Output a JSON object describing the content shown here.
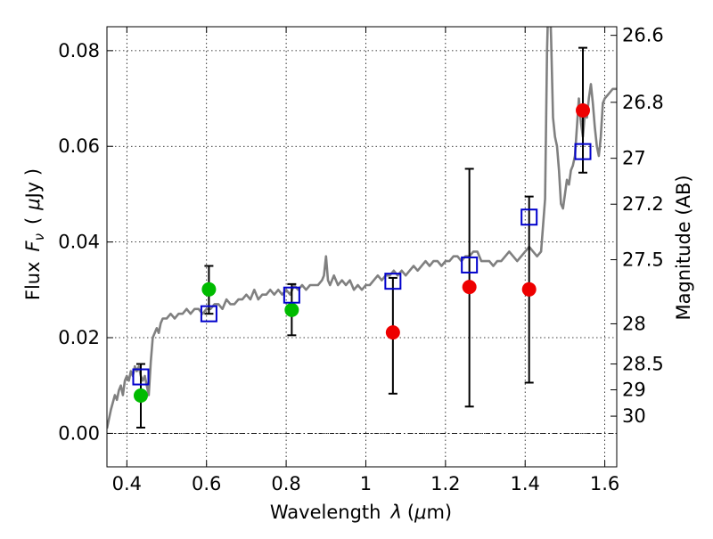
{
  "chart_data": {
    "type": "scatter",
    "xlabel": "Wavelength",
    "xlabel_symbol": "λ",
    "xlabel_unit_open": "(",
    "xlabel_unit_mu": "μ",
    "xlabel_unit_rest": "m)",
    "ylabel_prefix": "Flux",
    "ylabel_symbol": "F",
    "ylabel_subscript": "ν",
    "ylabel_unit_open": "(",
    "ylabel_unit_mu": "μ",
    "ylabel_unit_rest": "Jy )",
    "y2label": "Magnitude (AB)",
    "xlim": [
      0.35,
      1.63
    ],
    "ylim": [
      -0.007,
      0.085
    ],
    "grid": true,
    "x_ticks": [
      0.4,
      0.6,
      0.8,
      1.0,
      1.2,
      1.4,
      1.6
    ],
    "x_tick_labels": [
      "0.4",
      "0.6",
      "0.8",
      "1",
      "1.2",
      "1.4",
      "1.6"
    ],
    "y_ticks": [
      0.0,
      0.02,
      0.04,
      0.06,
      0.08
    ],
    "y_tick_labels": [
      "0.00",
      "0.02",
      "0.04",
      "0.06",
      "0.08"
    ],
    "y2_ticks": [
      {
        "label": "26.6",
        "flux": 0.0832
      },
      {
        "label": "26.8",
        "flux": 0.0692
      },
      {
        "label": "27",
        "flux": 0.0575
      },
      {
        "label": "27.2",
        "flux": 0.0479
      },
      {
        "label": "27.5",
        "flux": 0.0363
      },
      {
        "label": "28",
        "flux": 0.0229
      },
      {
        "label": "28.5",
        "flux": 0.0145
      },
      {
        "label": "29",
        "flux": 0.0091
      },
      {
        "label": "30",
        "flux": 0.0036
      }
    ],
    "colors": {
      "sed": "#808080",
      "green_points": "#00bb00",
      "red_points": "#ee0000",
      "model_squares": "#0000cc",
      "errorbars": "#000000"
    },
    "series": [
      {
        "type": "line",
        "points": [
          [
            0.35,
            0.001
          ],
          [
            0.36,
            0.005
          ],
          [
            0.37,
            0.008
          ],
          [
            0.375,
            0.007
          ],
          [
            0.38,
            0.009
          ],
          [
            0.385,
            0.01
          ],
          [
            0.39,
            0.008
          ],
          [
            0.395,
            0.011
          ],
          [
            0.4,
            0.012
          ],
          [
            0.405,
            0.011
          ],
          [
            0.41,
            0.013
          ],
          [
            0.415,
            0.012
          ],
          [
            0.42,
            0.014
          ],
          [
            0.425,
            0.013
          ],
          [
            0.43,
            0.014
          ],
          [
            0.435,
            0.012
          ],
          [
            0.44,
            0.011
          ],
          [
            0.445,
            0.012
          ],
          [
            0.45,
            0.01
          ],
          [
            0.455,
            0.008
          ],
          [
            0.46,
            0.015
          ],
          [
            0.465,
            0.02
          ],
          [
            0.47,
            0.021
          ],
          [
            0.475,
            0.022
          ],
          [
            0.48,
            0.021
          ],
          [
            0.485,
            0.023
          ],
          [
            0.49,
            0.024
          ],
          [
            0.5,
            0.024
          ],
          [
            0.51,
            0.025
          ],
          [
            0.52,
            0.024
          ],
          [
            0.53,
            0.025
          ],
          [
            0.54,
            0.025
          ],
          [
            0.55,
            0.026
          ],
          [
            0.56,
            0.025
          ],
          [
            0.57,
            0.026
          ],
          [
            0.58,
            0.026
          ],
          [
            0.59,
            0.025
          ],
          [
            0.6,
            0.026
          ],
          [
            0.61,
            0.026
          ],
          [
            0.62,
            0.027
          ],
          [
            0.63,
            0.027
          ],
          [
            0.64,
            0.026
          ],
          [
            0.65,
            0.028
          ],
          [
            0.66,
            0.027
          ],
          [
            0.67,
            0.027
          ],
          [
            0.68,
            0.028
          ],
          [
            0.69,
            0.028
          ],
          [
            0.7,
            0.029
          ],
          [
            0.71,
            0.028
          ],
          [
            0.72,
            0.03
          ],
          [
            0.73,
            0.028
          ],
          [
            0.74,
            0.029
          ],
          [
            0.75,
            0.029
          ],
          [
            0.76,
            0.03
          ],
          [
            0.77,
            0.029
          ],
          [
            0.78,
            0.03
          ],
          [
            0.79,
            0.029
          ],
          [
            0.8,
            0.03
          ],
          [
            0.81,
            0.029
          ],
          [
            0.82,
            0.031
          ],
          [
            0.83,
            0.03
          ],
          [
            0.84,
            0.031
          ],
          [
            0.85,
            0.03
          ],
          [
            0.86,
            0.031
          ],
          [
            0.87,
            0.031
          ],
          [
            0.88,
            0.031
          ],
          [
            0.89,
            0.032
          ],
          [
            0.895,
            0.033
          ],
          [
            0.9,
            0.037
          ],
          [
            0.905,
            0.032
          ],
          [
            0.91,
            0.031
          ],
          [
            0.92,
            0.033
          ],
          [
            0.93,
            0.031
          ],
          [
            0.94,
            0.032
          ],
          [
            0.95,
            0.031
          ],
          [
            0.96,
            0.032
          ],
          [
            0.97,
            0.03
          ],
          [
            0.98,
            0.031
          ],
          [
            0.99,
            0.03
          ],
          [
            1.0,
            0.031
          ],
          [
            1.01,
            0.031
          ],
          [
            1.02,
            0.032
          ],
          [
            1.03,
            0.033
          ],
          [
            1.04,
            0.032
          ],
          [
            1.05,
            0.033
          ],
          [
            1.06,
            0.033
          ],
          [
            1.07,
            0.034
          ],
          [
            1.08,
            0.033
          ],
          [
            1.09,
            0.034
          ],
          [
            1.1,
            0.033
          ],
          [
            1.11,
            0.034
          ],
          [
            1.12,
            0.035
          ],
          [
            1.13,
            0.034
          ],
          [
            1.14,
            0.035
          ],
          [
            1.15,
            0.036
          ],
          [
            1.16,
            0.035
          ],
          [
            1.17,
            0.036
          ],
          [
            1.18,
            0.036
          ],
          [
            1.19,
            0.035
          ],
          [
            1.2,
            0.036
          ],
          [
            1.21,
            0.036
          ],
          [
            1.22,
            0.037
          ],
          [
            1.23,
            0.037
          ],
          [
            1.24,
            0.036
          ],
          [
            1.25,
            0.037
          ],
          [
            1.26,
            0.037
          ],
          [
            1.27,
            0.038
          ],
          [
            1.28,
            0.038
          ],
          [
            1.29,
            0.036
          ],
          [
            1.3,
            0.036
          ],
          [
            1.31,
            0.036
          ],
          [
            1.32,
            0.035
          ],
          [
            1.33,
            0.036
          ],
          [
            1.34,
            0.036
          ],
          [
            1.35,
            0.037
          ],
          [
            1.36,
            0.038
          ],
          [
            1.37,
            0.037
          ],
          [
            1.38,
            0.036
          ],
          [
            1.39,
            0.037
          ],
          [
            1.4,
            0.038
          ],
          [
            1.41,
            0.039
          ],
          [
            1.42,
            0.038
          ],
          [
            1.43,
            0.037
          ],
          [
            1.44,
            0.038
          ],
          [
            1.45,
            0.049
          ],
          [
            1.455,
            0.08
          ],
          [
            1.46,
            0.096
          ],
          [
            1.465,
            0.083
          ],
          [
            1.47,
            0.066
          ],
          [
            1.475,
            0.062
          ],
          [
            1.48,
            0.06
          ],
          [
            1.485,
            0.055
          ],
          [
            1.49,
            0.048
          ],
          [
            1.495,
            0.047
          ],
          [
            1.5,
            0.05
          ],
          [
            1.505,
            0.053
          ],
          [
            1.51,
            0.052
          ],
          [
            1.515,
            0.055
          ],
          [
            1.52,
            0.056
          ],
          [
            1.525,
            0.058
          ],
          [
            1.53,
            0.064
          ],
          [
            1.535,
            0.07
          ],
          [
            1.54,
            0.065
          ],
          [
            1.545,
            0.062
          ],
          [
            1.55,
            0.067
          ],
          [
            1.555,
            0.066
          ],
          [
            1.56,
            0.07
          ],
          [
            1.565,
            0.073
          ],
          [
            1.57,
            0.069
          ],
          [
            1.575,
            0.064
          ],
          [
            1.58,
            0.06
          ],
          [
            1.585,
            0.058
          ],
          [
            1.59,
            0.062
          ],
          [
            1.595,
            0.069
          ],
          [
            1.6,
            0.07
          ],
          [
            1.61,
            0.071
          ],
          [
            1.62,
            0.072
          ],
          [
            1.63,
            0.072
          ]
        ]
      },
      {
        "type": "scatter",
        "marker": "circle",
        "points": [
          [
            0.435,
            0.0079
          ],
          [
            0.606,
            0.0301
          ],
          [
            0.814,
            0.0258
          ]
        ]
      },
      {
        "type": "scatter",
        "marker": "circle",
        "points": [
          [
            1.068,
            0.0211
          ],
          [
            1.26,
            0.0306
          ],
          [
            1.41,
            0.0301
          ],
          [
            1.545,
            0.0675
          ]
        ]
      },
      {
        "type": "scatter",
        "marker": "open-square",
        "points": [
          [
            0.435,
            0.0118
          ],
          [
            0.606,
            0.025
          ],
          [
            0.814,
            0.0289
          ],
          [
            1.068,
            0.0318
          ],
          [
            1.26,
            0.0352
          ],
          [
            1.41,
            0.0452
          ],
          [
            1.545,
            0.0589
          ]
        ]
      },
      {
        "type": "errorbar",
        "points": [
          {
            "x": 0.435,
            "low": 0.0012,
            "high": 0.0145
          },
          {
            "x": 0.606,
            "low": 0.025,
            "high": 0.035
          },
          {
            "x": 0.814,
            "low": 0.0205,
            "high": 0.0312
          },
          {
            "x": 1.068,
            "low": 0.0083,
            "high": 0.0325
          },
          {
            "x": 1.26,
            "low": 0.0056,
            "high": 0.0553
          },
          {
            "x": 1.41,
            "low": 0.0106,
            "high": 0.0495
          },
          {
            "x": 1.545,
            "low": 0.0545,
            "high": 0.0806
          }
        ]
      }
    ]
  }
}
